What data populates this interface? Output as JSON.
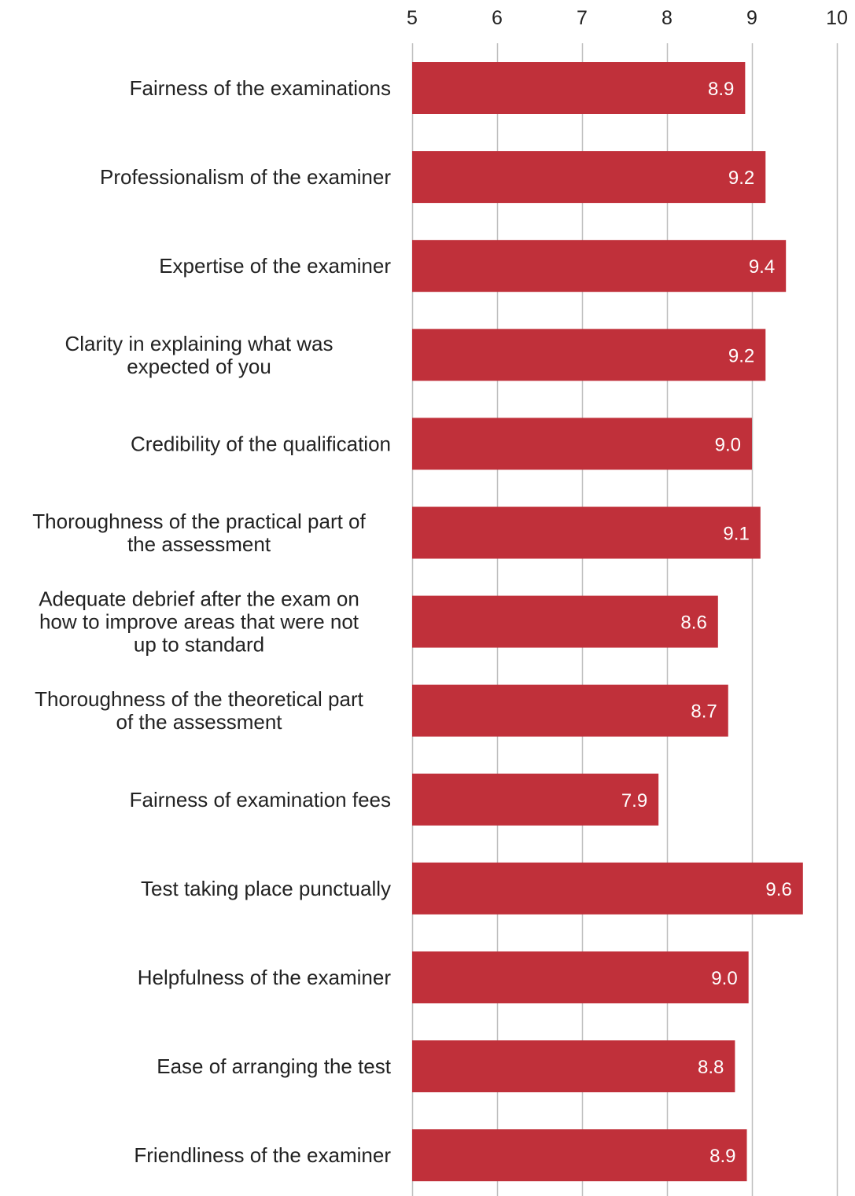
{
  "chart_data": {
    "type": "bar",
    "orientation": "horizontal",
    "categories": [
      "Fairness of the examinations",
      "Professionalism of the examiner",
      "Expertise of the examiner",
      "Clarity in explaining what was expected of you",
      "Credibility of the qualification",
      "Thoroughness of the practical part of the assessment",
      "Adequate debrief after the exam on how to improve areas that were not up to standard",
      "Thoroughness of the theoretical part of the assessment",
      "Fairness of examination fees",
      "Test taking place punctually",
      "Helpfulness of the examiner",
      "Ease of arranging the test",
      "Friendliness of the examiner"
    ],
    "category_lines": [
      [
        "Fairness of the examinations"
      ],
      [
        "Professionalism of the examiner"
      ],
      [
        "Expertise of the examiner"
      ],
      [
        "Clarity in explaining what was",
        "expected of you"
      ],
      [
        "Credibility of the qualification"
      ],
      [
        "Thoroughness of the practical part of",
        "the assessment"
      ],
      [
        "Adequate debrief after the exam on",
        "how to improve areas that were not",
        "up to standard"
      ],
      [
        "Thoroughness of the theoretical part",
        "of the assessment"
      ],
      [
        "Fairness of examination fees"
      ],
      [
        "Test taking place punctually"
      ],
      [
        "Helpfulness of the examiner"
      ],
      [
        "Ease of arranging the test"
      ],
      [
        "Friendliness of the examiner"
      ]
    ],
    "values": [
      8.92,
      9.16,
      9.4,
      9.16,
      9.0,
      9.1,
      8.6,
      8.72,
      7.9,
      9.6,
      8.96,
      8.8,
      8.94
    ],
    "value_labels": [
      "8.9",
      "9.2",
      "9.4",
      "9.2",
      "9.0",
      "9.1",
      "8.6",
      "8.7",
      "7.9",
      "9.6",
      "9.0",
      "8.8",
      "8.9"
    ],
    "xlim": [
      5,
      10
    ],
    "ticks": [
      5,
      6,
      7,
      8,
      9,
      10
    ],
    "tick_labels": [
      "5",
      "6",
      "7",
      "8",
      "9",
      "10"
    ],
    "axis_position": "top",
    "grid": true,
    "bar_color": "#C0303A",
    "grid_color": "#BFBFBF",
    "title": "",
    "xlabel": "",
    "ylabel": ""
  }
}
